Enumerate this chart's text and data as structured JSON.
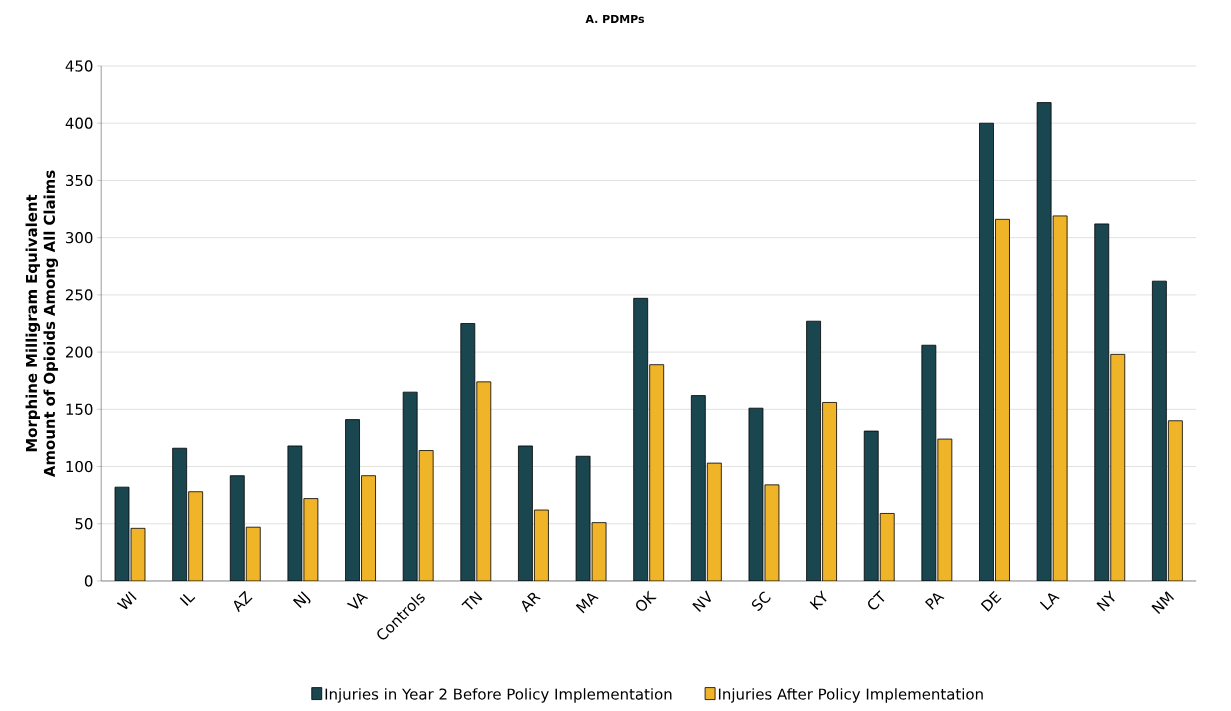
{
  "chart_data": {
    "type": "bar",
    "title": "A. PDMPs",
    "ylabel": "Morphine Milligram Equivalent Amount of Opioids Among All Claims",
    "categories": [
      "WI",
      "IL",
      "AZ",
      "NJ",
      "VA",
      "Controls",
      "TN",
      "AR",
      "MA",
      "OK",
      "NV",
      "SC",
      "KY",
      "CT",
      "PA",
      "DE",
      "LA",
      "NY",
      "NM"
    ],
    "series": [
      {
        "name": "Injuries in Year 2 Before Policy Implementation",
        "color": "#1a4650",
        "values": [
          82,
          116,
          92,
          118,
          141,
          165,
          225,
          118,
          109,
          247,
          162,
          151,
          227,
          131,
          206,
          400,
          418,
          312,
          262
        ]
      },
      {
        "name": "Injuries After Policy Implementation",
        "color": "#f0b429",
        "values": [
          46,
          78,
          47,
          72,
          92,
          114,
          174,
          62,
          51,
          189,
          103,
          84,
          156,
          59,
          124,
          316,
          319,
          198,
          140
        ]
      }
    ],
    "ylim": [
      0,
      450
    ],
    "yticks": [
      0,
      50,
      100,
      150,
      200,
      250,
      300,
      350,
      400,
      450
    ],
    "grid": "y",
    "legend": "bottom"
  }
}
